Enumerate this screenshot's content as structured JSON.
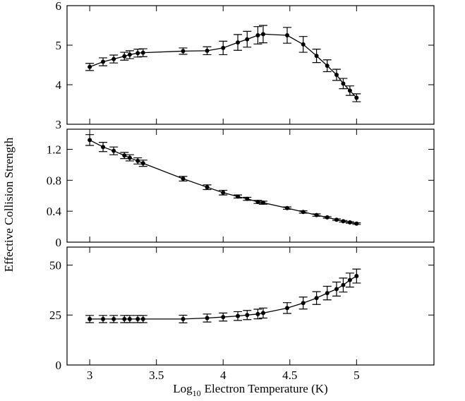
{
  "chart_data": [
    {
      "type": "line",
      "color": "#000000",
      "x": [
        3.0,
        3.1,
        3.18,
        3.26,
        3.3,
        3.36,
        3.4,
        3.7,
        3.88,
        4.0,
        4.11,
        4.18,
        4.26,
        4.3,
        4.48,
        4.6,
        4.7,
        4.78,
        4.85,
        4.9,
        4.95,
        5.0
      ],
      "values": [
        4.45,
        4.58,
        4.65,
        4.72,
        4.76,
        4.8,
        4.81,
        4.85,
        4.86,
        4.93,
        5.07,
        5.15,
        5.25,
        5.28,
        5.25,
        5.02,
        4.73,
        4.48,
        4.25,
        4.03,
        3.85,
        3.67
      ],
      "errors": [
        0.09,
        0.1,
        0.1,
        0.1,
        0.1,
        0.1,
        0.1,
        0.08,
        0.1,
        0.17,
        0.2,
        0.2,
        0.22,
        0.22,
        0.2,
        0.2,
        0.17,
        0.15,
        0.14,
        0.13,
        0.12,
        0.1
      ],
      "xlim": [
        2.83,
        5.58
      ],
      "xticks": [
        3,
        3.5,
        4,
        4.5,
        5
      ],
      "ylim": [
        3,
        6
      ],
      "yticks": [
        3,
        4,
        5,
        6
      ]
    },
    {
      "type": "line",
      "color": "#000000",
      "x": [
        3.0,
        3.1,
        3.18,
        3.26,
        3.3,
        3.36,
        3.4,
        3.7,
        3.88,
        4.0,
        4.11,
        4.18,
        4.26,
        4.3,
        4.48,
        4.6,
        4.7,
        4.78,
        4.85,
        4.9,
        4.95,
        5.0
      ],
      "values": [
        1.32,
        1.23,
        1.18,
        1.12,
        1.09,
        1.05,
        1.02,
        0.82,
        0.71,
        0.64,
        0.59,
        0.56,
        0.52,
        0.51,
        0.44,
        0.39,
        0.35,
        0.32,
        0.29,
        0.27,
        0.255,
        0.24
      ],
      "errors": [
        0.07,
        0.06,
        0.05,
        0.04,
        0.04,
        0.04,
        0.04,
        0.03,
        0.03,
        0.03,
        0.02,
        0.02,
        0.02,
        0.02,
        0.015,
        0.015,
        0.015,
        0.01,
        0.01,
        0.01,
        0.01,
        0.01
      ],
      "xlim": [
        2.83,
        5.58
      ],
      "xticks": [
        3,
        3.5,
        4,
        4.5,
        5
      ],
      "ylim": [
        0,
        1.46
      ],
      "yticks": [
        0,
        0.4,
        0.8,
        1.2
      ],
      "y_label": "Effective Collision Strength"
    },
    {
      "type": "line",
      "color": "#000000",
      "x": [
        3.0,
        3.1,
        3.18,
        3.26,
        3.3,
        3.36,
        3.4,
        3.7,
        3.88,
        4.0,
        4.11,
        4.18,
        4.26,
        4.3,
        4.48,
        4.6,
        4.7,
        4.78,
        4.85,
        4.9,
        4.95,
        5.0
      ],
      "values": [
        23,
        23,
        23,
        23,
        23,
        23,
        23,
        23,
        23.5,
        24,
        24.5,
        25,
        25.5,
        26,
        28.5,
        31,
        33.5,
        36,
        38,
        40,
        42.5,
        44.5
      ],
      "errors": [
        1.8,
        1.8,
        1.8,
        1.8,
        1.8,
        1.8,
        1.8,
        1.9,
        2,
        2,
        2.2,
        2.3,
        2.4,
        2.5,
        2.7,
        3,
        3.2,
        3.4,
        3.5,
        3.5,
        3.5,
        3.5
      ],
      "xlim": [
        2.83,
        5.58
      ],
      "xticks": [
        3,
        3.5,
        4,
        4.5,
        5
      ],
      "ylim": [
        0,
        59
      ],
      "yticks": [
        0,
        25,
        50
      ],
      "x_label": "Log",
      "x_label_subscript": "10",
      "x_label_rest": "Electron Temperature (K)"
    }
  ]
}
